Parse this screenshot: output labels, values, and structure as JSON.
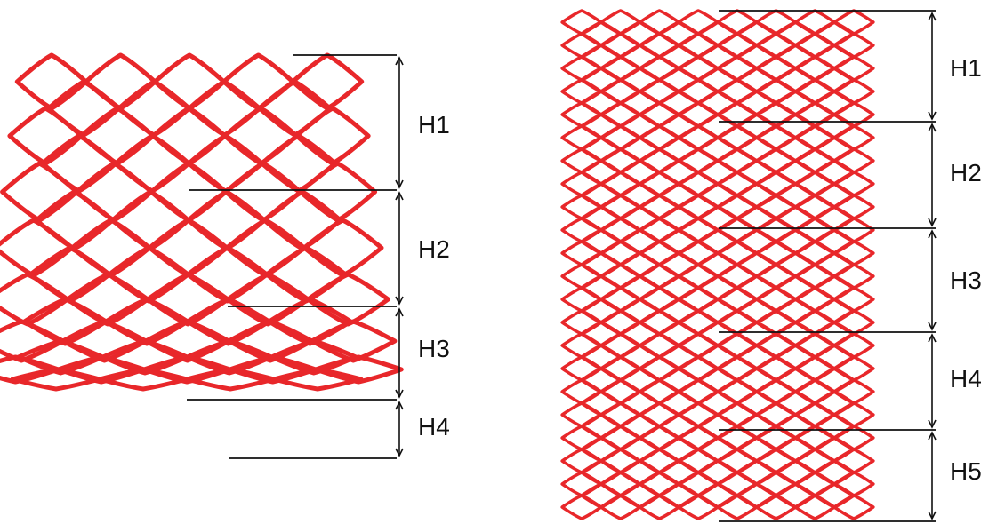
{
  "colors": {
    "mesh": "#e8272a",
    "lines": "#111111",
    "background": "#ffffff"
  },
  "left_figure": {
    "labels": [
      "H1",
      "H2",
      "H3",
      "H4"
    ]
  },
  "right_figure": {
    "labels": [
      "H1",
      "H2",
      "H3",
      "H4",
      "H5"
    ]
  }
}
